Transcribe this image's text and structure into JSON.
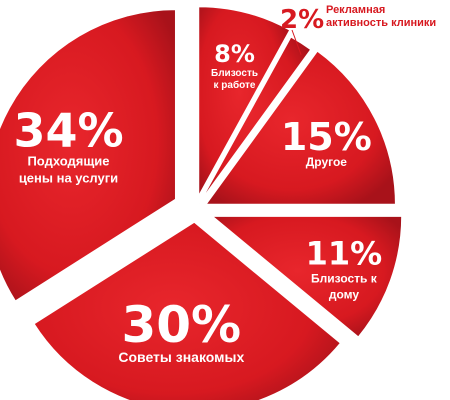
{
  "chart_data": {
    "type": "pie",
    "exploded": true,
    "slices": [
      {
        "label": "Близость к работе",
        "value": 8,
        "value_text": "8%",
        "lines": [
          "Близость",
          "к работе"
        ]
      },
      {
        "label": "Рекламная активность клиники",
        "value": 2,
        "value_text": "2%",
        "lines": [
          "Рекламная",
          "активность клиники"
        ]
      },
      {
        "label": "Другое",
        "value": 15,
        "value_text": "15%",
        "lines": [
          "Другое"
        ]
      },
      {
        "label": "Близость к дому",
        "value": 11,
        "value_text": "11%",
        "lines": [
          "Близость к",
          "дому"
        ]
      },
      {
        "label": "Советы знакомых",
        "value": 30,
        "value_text": "30%",
        "lines": [
          "Советы знакомых"
        ]
      },
      {
        "label": "Подходящие цены на услуги",
        "value": 34,
        "value_text": "34%",
        "lines": [
          "Подходящие",
          "цены на услуги"
        ]
      }
    ]
  },
  "colors": {
    "slice": "#d71920",
    "slice_dark": "#9e0f14",
    "text_on_slice": "#ffffff",
    "callout_text": "#d71920"
  }
}
